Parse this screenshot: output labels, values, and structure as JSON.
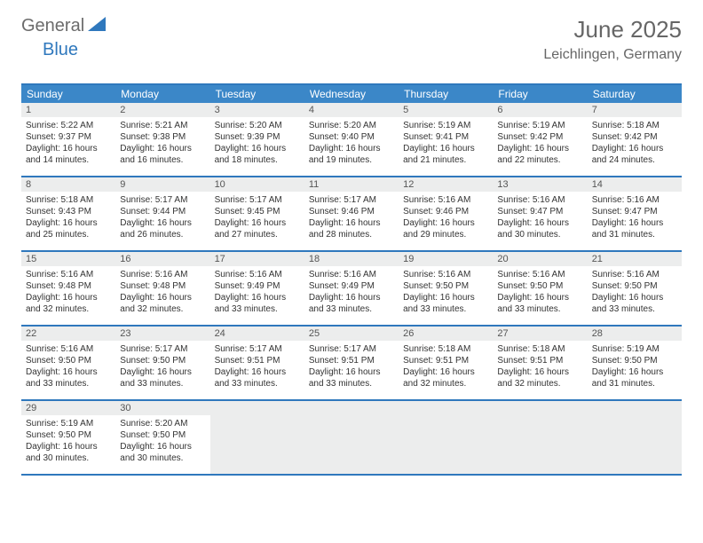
{
  "logo": {
    "text1": "General",
    "text2": "Blue"
  },
  "title": {
    "month_year": "June 2025",
    "location": "Leichlingen, Germany"
  },
  "colors": {
    "header_bar": "#3b87c8",
    "divider": "#2f78bd",
    "day_label_bg": "#eceded",
    "logo_gray": "#6b6b6b",
    "logo_blue": "#2f78bd",
    "title_color": "#666666",
    "text_color": "#333333",
    "background": "#ffffff"
  },
  "typography": {
    "title_fontsize": 26,
    "location_fontsize": 16,
    "dow_fontsize": 12,
    "daynum_fontsize": 11,
    "content_fontsize": 10
  },
  "days_of_week": [
    "Sunday",
    "Monday",
    "Tuesday",
    "Wednesday",
    "Thursday",
    "Friday",
    "Saturday"
  ],
  "weeks": [
    [
      {
        "num": "1",
        "sunrise": "Sunrise: 5:22 AM",
        "sunset": "Sunset: 9:37 PM",
        "daylight1": "Daylight: 16 hours",
        "daylight2": "and 14 minutes."
      },
      {
        "num": "2",
        "sunrise": "Sunrise: 5:21 AM",
        "sunset": "Sunset: 9:38 PM",
        "daylight1": "Daylight: 16 hours",
        "daylight2": "and 16 minutes."
      },
      {
        "num": "3",
        "sunrise": "Sunrise: 5:20 AM",
        "sunset": "Sunset: 9:39 PM",
        "daylight1": "Daylight: 16 hours",
        "daylight2": "and 18 minutes."
      },
      {
        "num": "4",
        "sunrise": "Sunrise: 5:20 AM",
        "sunset": "Sunset: 9:40 PM",
        "daylight1": "Daylight: 16 hours",
        "daylight2": "and 19 minutes."
      },
      {
        "num": "5",
        "sunrise": "Sunrise: 5:19 AM",
        "sunset": "Sunset: 9:41 PM",
        "daylight1": "Daylight: 16 hours",
        "daylight2": "and 21 minutes."
      },
      {
        "num": "6",
        "sunrise": "Sunrise: 5:19 AM",
        "sunset": "Sunset: 9:42 PM",
        "daylight1": "Daylight: 16 hours",
        "daylight2": "and 22 minutes."
      },
      {
        "num": "7",
        "sunrise": "Sunrise: 5:18 AM",
        "sunset": "Sunset: 9:42 PM",
        "daylight1": "Daylight: 16 hours",
        "daylight2": "and 24 minutes."
      }
    ],
    [
      {
        "num": "8",
        "sunrise": "Sunrise: 5:18 AM",
        "sunset": "Sunset: 9:43 PM",
        "daylight1": "Daylight: 16 hours",
        "daylight2": "and 25 minutes."
      },
      {
        "num": "9",
        "sunrise": "Sunrise: 5:17 AM",
        "sunset": "Sunset: 9:44 PM",
        "daylight1": "Daylight: 16 hours",
        "daylight2": "and 26 minutes."
      },
      {
        "num": "10",
        "sunrise": "Sunrise: 5:17 AM",
        "sunset": "Sunset: 9:45 PM",
        "daylight1": "Daylight: 16 hours",
        "daylight2": "and 27 minutes."
      },
      {
        "num": "11",
        "sunrise": "Sunrise: 5:17 AM",
        "sunset": "Sunset: 9:46 PM",
        "daylight1": "Daylight: 16 hours",
        "daylight2": "and 28 minutes."
      },
      {
        "num": "12",
        "sunrise": "Sunrise: 5:16 AM",
        "sunset": "Sunset: 9:46 PM",
        "daylight1": "Daylight: 16 hours",
        "daylight2": "and 29 minutes."
      },
      {
        "num": "13",
        "sunrise": "Sunrise: 5:16 AM",
        "sunset": "Sunset: 9:47 PM",
        "daylight1": "Daylight: 16 hours",
        "daylight2": "and 30 minutes."
      },
      {
        "num": "14",
        "sunrise": "Sunrise: 5:16 AM",
        "sunset": "Sunset: 9:47 PM",
        "daylight1": "Daylight: 16 hours",
        "daylight2": "and 31 minutes."
      }
    ],
    [
      {
        "num": "15",
        "sunrise": "Sunrise: 5:16 AM",
        "sunset": "Sunset: 9:48 PM",
        "daylight1": "Daylight: 16 hours",
        "daylight2": "and 32 minutes."
      },
      {
        "num": "16",
        "sunrise": "Sunrise: 5:16 AM",
        "sunset": "Sunset: 9:48 PM",
        "daylight1": "Daylight: 16 hours",
        "daylight2": "and 32 minutes."
      },
      {
        "num": "17",
        "sunrise": "Sunrise: 5:16 AM",
        "sunset": "Sunset: 9:49 PM",
        "daylight1": "Daylight: 16 hours",
        "daylight2": "and 33 minutes."
      },
      {
        "num": "18",
        "sunrise": "Sunrise: 5:16 AM",
        "sunset": "Sunset: 9:49 PM",
        "daylight1": "Daylight: 16 hours",
        "daylight2": "and 33 minutes."
      },
      {
        "num": "19",
        "sunrise": "Sunrise: 5:16 AM",
        "sunset": "Sunset: 9:50 PM",
        "daylight1": "Daylight: 16 hours",
        "daylight2": "and 33 minutes."
      },
      {
        "num": "20",
        "sunrise": "Sunrise: 5:16 AM",
        "sunset": "Sunset: 9:50 PM",
        "daylight1": "Daylight: 16 hours",
        "daylight2": "and 33 minutes."
      },
      {
        "num": "21",
        "sunrise": "Sunrise: 5:16 AM",
        "sunset": "Sunset: 9:50 PM",
        "daylight1": "Daylight: 16 hours",
        "daylight2": "and 33 minutes."
      }
    ],
    [
      {
        "num": "22",
        "sunrise": "Sunrise: 5:16 AM",
        "sunset": "Sunset: 9:50 PM",
        "daylight1": "Daylight: 16 hours",
        "daylight2": "and 33 minutes."
      },
      {
        "num": "23",
        "sunrise": "Sunrise: 5:17 AM",
        "sunset": "Sunset: 9:50 PM",
        "daylight1": "Daylight: 16 hours",
        "daylight2": "and 33 minutes."
      },
      {
        "num": "24",
        "sunrise": "Sunrise: 5:17 AM",
        "sunset": "Sunset: 9:51 PM",
        "daylight1": "Daylight: 16 hours",
        "daylight2": "and 33 minutes."
      },
      {
        "num": "25",
        "sunrise": "Sunrise: 5:17 AM",
        "sunset": "Sunset: 9:51 PM",
        "daylight1": "Daylight: 16 hours",
        "daylight2": "and 33 minutes."
      },
      {
        "num": "26",
        "sunrise": "Sunrise: 5:18 AM",
        "sunset": "Sunset: 9:51 PM",
        "daylight1": "Daylight: 16 hours",
        "daylight2": "and 32 minutes."
      },
      {
        "num": "27",
        "sunrise": "Sunrise: 5:18 AM",
        "sunset": "Sunset: 9:51 PM",
        "daylight1": "Daylight: 16 hours",
        "daylight2": "and 32 minutes."
      },
      {
        "num": "28",
        "sunrise": "Sunrise: 5:19 AM",
        "sunset": "Sunset: 9:50 PM",
        "daylight1": "Daylight: 16 hours",
        "daylight2": "and 31 minutes."
      }
    ],
    [
      {
        "num": "29",
        "sunrise": "Sunrise: 5:19 AM",
        "sunset": "Sunset: 9:50 PM",
        "daylight1": "Daylight: 16 hours",
        "daylight2": "and 30 minutes."
      },
      {
        "num": "30",
        "sunrise": "Sunrise: 5:20 AM",
        "sunset": "Sunset: 9:50 PM",
        "daylight1": "Daylight: 16 hours",
        "daylight2": "and 30 minutes."
      },
      {
        "empty": true
      },
      {
        "empty": true
      },
      {
        "empty": true
      },
      {
        "empty": true
      },
      {
        "empty": true
      }
    ]
  ]
}
